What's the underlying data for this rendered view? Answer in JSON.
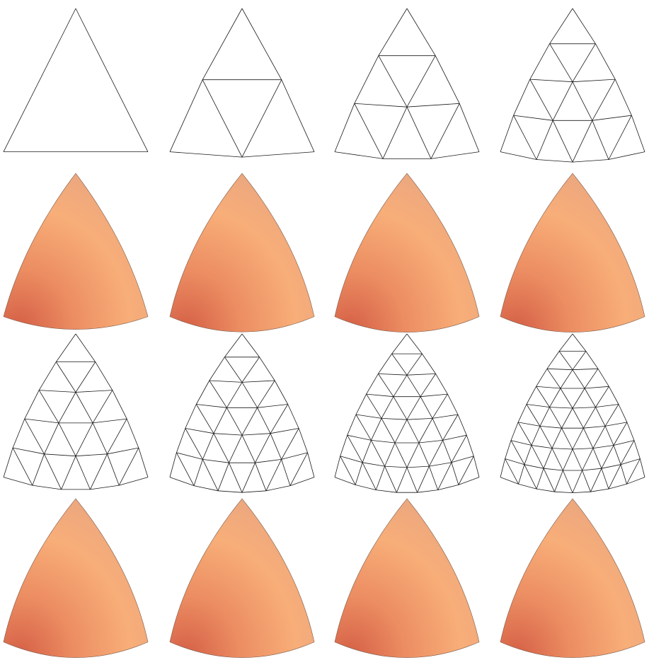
{
  "subdivision_levels": [
    1,
    2,
    3,
    4,
    5,
    6,
    7,
    8
  ],
  "rows": [
    {
      "kind": "wireframe",
      "levels": [
        1,
        2,
        3,
        4
      ]
    },
    {
      "kind": "shaded",
      "levels": [
        1,
        2,
        3,
        4
      ]
    },
    {
      "kind": "wireframe",
      "levels": [
        5,
        6,
        7,
        8
      ]
    },
    {
      "kind": "shaded",
      "levels": [
        5,
        6,
        7,
        8
      ]
    }
  ],
  "colors": {
    "mesh_edge": "#1a1a1a",
    "shade_light": "#f7b07a",
    "shade_mid": "#f19a6c",
    "shade_dark": "#d96a4c",
    "shade_top": "#e8a57c"
  }
}
